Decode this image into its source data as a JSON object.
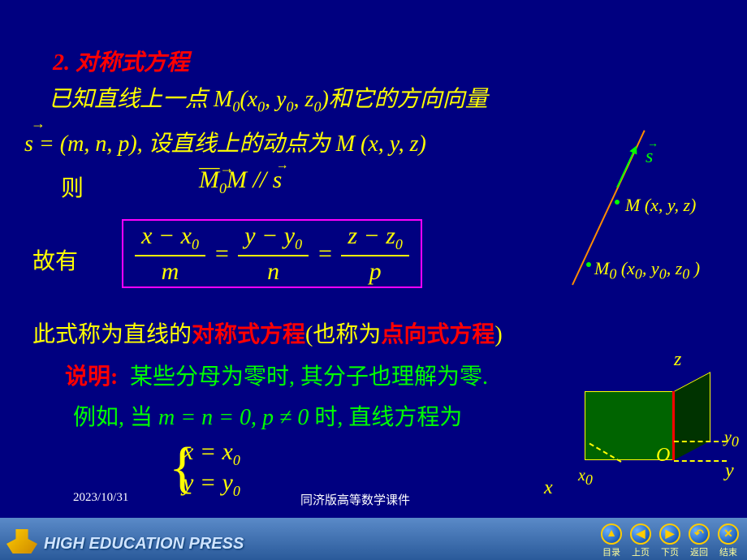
{
  "heading": "2. 对称式方程",
  "line1_a": "已知直线上一点 ",
  "line1_m": "M",
  "line1_sub0": "0",
  "line1_p": "(x",
  "line1_sub1": "0",
  "line1_c1": ", y",
  "line1_sub2": "0",
  "line1_c2": ", z",
  "line1_sub3": "0",
  "line1_c3": ")",
  "line1_b": "和它的方向向量",
  "vec_s_arrow": "→",
  "line2_a": "s = (m, n, p), ",
  "line2_b": "设直线上的动点为 ",
  "line2_c": "M (x, y, z)",
  "line3": "则",
  "par_m0m_arrow": "──→",
  "par_m0m": "M",
  "par_sub": "0",
  "par_m": "M",
  "par_slash": " // ",
  "par_s": "s",
  "par_s_arrow": "→",
  "line4": "故有",
  "eq": {
    "n1a": "x − x",
    "n1s": "0",
    "n2a": "y − y",
    "n2s": "0",
    "n3a": "z − z",
    "n3s": "0",
    "d1": "m",
    "d2": "n",
    "d3": "p",
    "eq": "="
  },
  "line5_a": "此式称为直线的",
  "line5_b": "对称式方程",
  "line5_c": "(也称为",
  "line5_d": "点向式方程",
  "line5_e": ")",
  "line6a": "说明:",
  "line6b": " 某些分母为零时, 其分子也理解为零.",
  "line7_a": "例如, 当 ",
  "line7_m": "m = n = 0, p ≠ 0",
  "line7_b": " 时,  直线方程为",
  "eq2_1a": "x = x",
  "eq2_1s": "0",
  "eq2_2a": "y = y",
  "eq2_2s": "0",
  "brace": "{",
  "diag1": {
    "s": "s",
    "s_arrow": "→",
    "m": "M (x, y, z)",
    "m0a": "M",
    "m0s": "0",
    "m0b": " (x",
    "m0s1": "0",
    "m0c": ", y",
    "m0s2": "0",
    "m0d": ", z",
    "m0s3": "0",
    "m0e": " )"
  },
  "diag2": {
    "z": "z",
    "y": "y",
    "x": "x",
    "O": "O",
    "y0a": "y",
    "y0s": "0",
    "x0a": "x",
    "x0s": "0"
  },
  "date": "2023/10/31",
  "course": "同济版高等数学课件",
  "footer_text": "HIGH EDUCATION PRESS",
  "nav": {
    "toc": "目录",
    "toc_icon": "▲",
    "prev": "上页",
    "prev_icon": "◀",
    "next": "下页",
    "next_icon": "▶",
    "back": "返回",
    "back_icon": "↶",
    "end": "结束",
    "end_icon": "✕"
  }
}
